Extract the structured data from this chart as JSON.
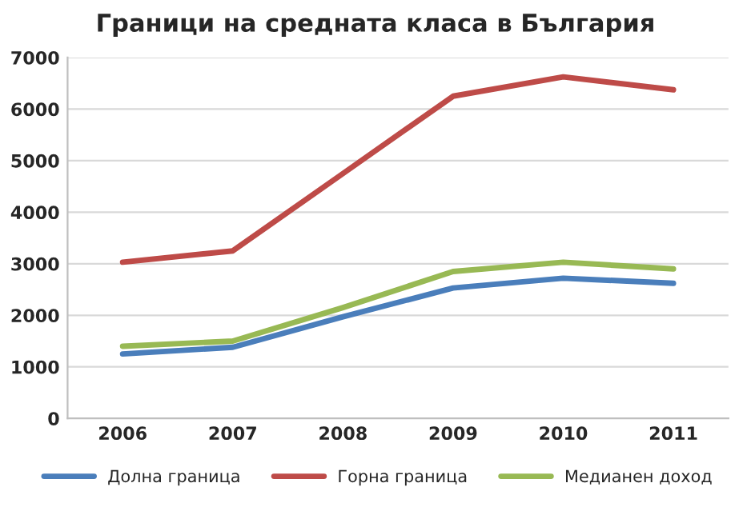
{
  "chart_data": {
    "type": "line",
    "title": "Граници на средната класа в България",
    "categories": [
      "2006",
      "2007",
      "2008",
      "2009",
      "2010",
      "2011"
    ],
    "series": [
      {
        "name": "Долна граница",
        "color": "#4a7ebb",
        "values": [
          1250,
          1380,
          1970,
          2530,
          2720,
          2620
        ]
      },
      {
        "name": "Горна граница",
        "color": "#be4b48",
        "values": [
          3030,
          3250,
          4750,
          6250,
          6625,
          6375
        ]
      },
      {
        "name": "Медианен доход",
        "color": "#98b954",
        "values": [
          1400,
          1500,
          2150,
          2850,
          3030,
          2900
        ]
      }
    ],
    "ylim": [
      0,
      7000
    ],
    "yticks": [
      0,
      1000,
      2000,
      3000,
      4000,
      5000,
      6000,
      7000
    ],
    "grid": "y",
    "legend": "bottom",
    "marker": "none",
    "line_style": "solid"
  }
}
